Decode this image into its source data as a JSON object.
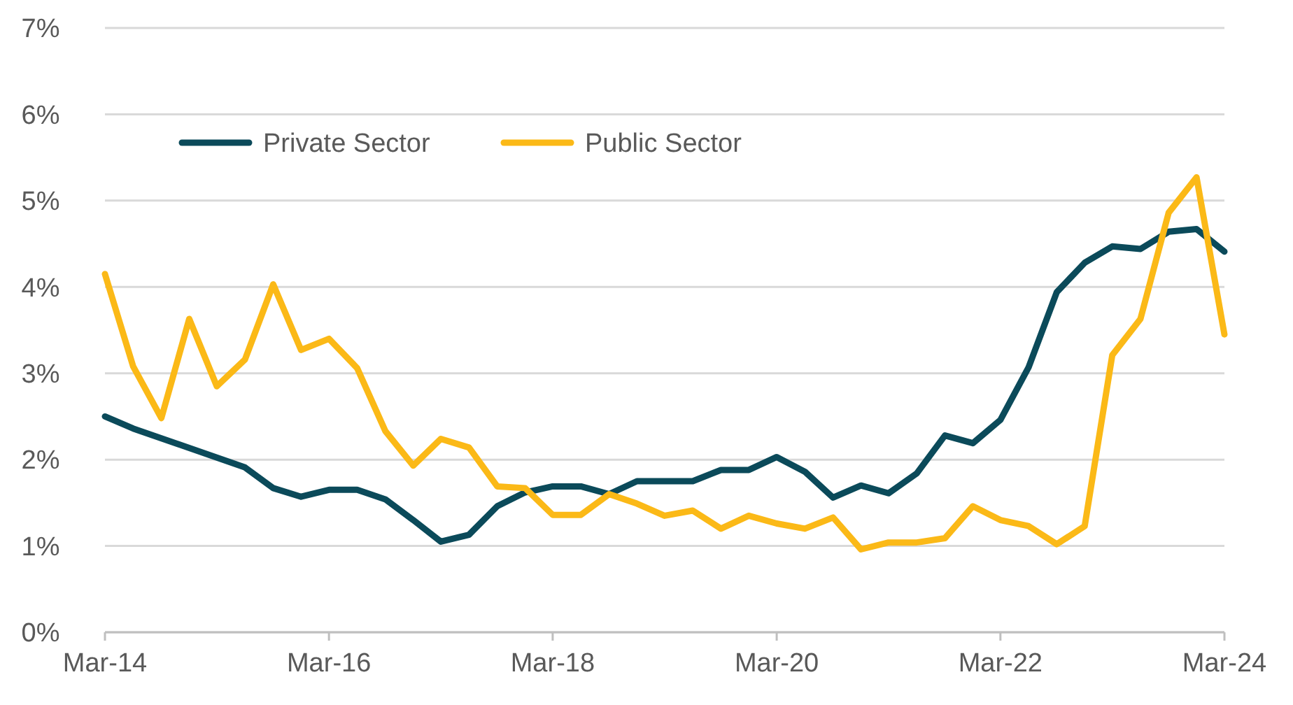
{
  "chart_data": {
    "type": "line",
    "x": [
      "2014-03",
      "2014-06",
      "2014-09",
      "2014-12",
      "2015-03",
      "2015-06",
      "2015-09",
      "2015-12",
      "2016-03",
      "2016-06",
      "2016-09",
      "2016-12",
      "2017-03",
      "2017-06",
      "2017-09",
      "2017-12",
      "2018-03",
      "2018-06",
      "2018-09",
      "2018-12",
      "2019-03",
      "2019-06",
      "2019-09",
      "2019-12",
      "2020-03",
      "2020-06",
      "2020-09",
      "2020-12",
      "2021-03",
      "2021-06",
      "2021-09",
      "2021-12",
      "2022-03",
      "2022-06",
      "2022-09",
      "2022-12",
      "2023-03",
      "2023-06",
      "2023-09",
      "2023-12",
      "2024-03"
    ],
    "series": [
      {
        "name": "Private Sector",
        "color": "#0b4a5a",
        "x": [
          "2014-03",
          "2014-06",
          "2015-06",
          "2015-09",
          "2015-12",
          "2016-03",
          "2016-06",
          "2016-09",
          "2016-12",
          "2017-03",
          "2017-06",
          "2017-09",
          "2017-12",
          "2018-03",
          "2018-06",
          "2018-09",
          "2018-12",
          "2019-03",
          "2019-06",
          "2019-09",
          "2019-12",
          "2020-03",
          "2020-06",
          "2020-09",
          "2020-12",
          "2021-03",
          "2021-06",
          "2021-09",
          "2021-12",
          "2022-03",
          "2022-06",
          "2022-09",
          "2022-12",
          "2023-03",
          "2023-06",
          "2023-09",
          "2023-12",
          "2024-03"
        ],
        "values": [
          2.5,
          2.36,
          1.91,
          1.67,
          1.57,
          1.65,
          1.65,
          1.54,
          1.3,
          1.05,
          1.13,
          1.46,
          1.62,
          1.69,
          1.69,
          1.6,
          1.75,
          1.75,
          1.75,
          1.88,
          1.88,
          2.03,
          1.86,
          1.56,
          1.7,
          1.61,
          1.84,
          2.28,
          2.19,
          2.46,
          3.07,
          3.94,
          4.28,
          4.47,
          4.44,
          4.64,
          4.67,
          4.41
        ]
      },
      {
        "name": "Public Sector",
        "color": "#fbb917",
        "values": [
          4.15,
          3.08,
          2.48,
          3.63,
          2.85,
          3.16,
          4.03,
          3.27,
          3.4,
          3.06,
          2.33,
          1.93,
          2.24,
          2.14,
          1.69,
          1.67,
          1.36,
          1.36,
          1.6,
          1.49,
          1.35,
          1.41,
          1.2,
          1.35,
          1.26,
          1.2,
          1.33,
          0.96,
          1.04,
          1.04,
          1.09,
          1.46,
          1.3,
          1.23,
          1.02,
          1.23,
          3.21,
          3.63,
          4.86,
          5.27,
          3.45
        ]
      }
    ],
    "xlim": [
      "2014-03",
      "2024-03"
    ],
    "xticks": [
      {
        "value": "2014-03",
        "label": "Mar-14"
      },
      {
        "value": "2016-03",
        "label": "Mar-16"
      },
      {
        "value": "2018-03",
        "label": "Mar-18"
      },
      {
        "value": "2020-03",
        "label": "Mar-20"
      },
      {
        "value": "2022-03",
        "label": "Mar-22"
      },
      {
        "value": "2024-03",
        "label": "Mar-24"
      }
    ],
    "ylim": [
      0,
      7
    ],
    "yticks": [
      {
        "value": 0,
        "label": "0%"
      },
      {
        "value": 1,
        "label": "1%"
      },
      {
        "value": 2,
        "label": "2%"
      },
      {
        "value": 3,
        "label": "3%"
      },
      {
        "value": 4,
        "label": "4%"
      },
      {
        "value": 5,
        "label": "5%"
      },
      {
        "value": 6,
        "label": "6%"
      },
      {
        "value": 7,
        "label": "7%"
      }
    ],
    "grid": "y",
    "legend": "top left",
    "marker": "none",
    "line_style": "solid"
  }
}
